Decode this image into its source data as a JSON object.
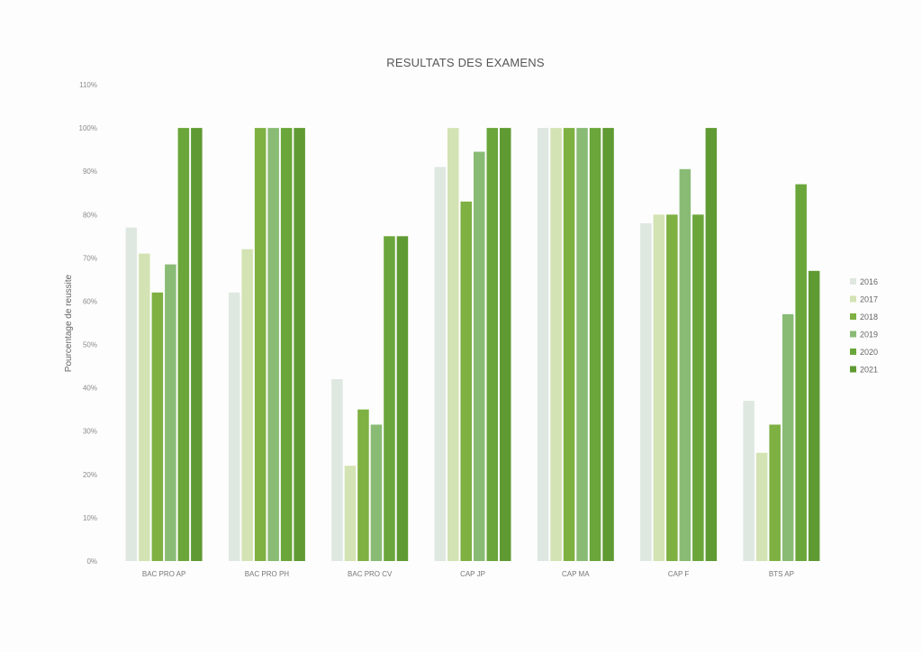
{
  "chart_data": {
    "type": "bar",
    "title": "RESULTATS DES EXAMENS",
    "xlabel": "",
    "ylabel": "Pourcentage de reussite",
    "ylim": [
      0,
      110
    ],
    "ytick_step": 10,
    "ytick_suffix": "%",
    "grid": false,
    "legend_position": "right",
    "categories": [
      "BAC PRO AP",
      "BAC PRO PH",
      "BAC PRO CV",
      "CAP JP",
      "CAP MA",
      "CAP F",
      "BTS AP"
    ],
    "series": [
      {
        "name": "2016",
        "color": "#dfe8e0",
        "values": [
          77,
          62,
          42,
          91,
          100,
          78,
          37
        ]
      },
      {
        "name": "2017",
        "color": "#d3e3b3",
        "values": [
          71,
          72,
          22,
          100,
          100,
          80,
          25
        ]
      },
      {
        "name": "2018",
        "color": "#7eb042",
        "values": [
          62,
          100,
          35,
          83,
          100,
          80,
          31.5
        ]
      },
      {
        "name": "2019",
        "color": "#89bb75",
        "values": [
          68.5,
          100,
          31.5,
          94.5,
          100,
          90.5,
          57
        ]
      },
      {
        "name": "2020",
        "color": "#6aa63a",
        "values": [
          100,
          100,
          75,
          100,
          100,
          80,
          87
        ]
      },
      {
        "name": "2021",
        "color": "#5f9a32",
        "values": [
          100,
          100,
          75,
          100,
          100,
          100,
          67
        ]
      }
    ]
  }
}
